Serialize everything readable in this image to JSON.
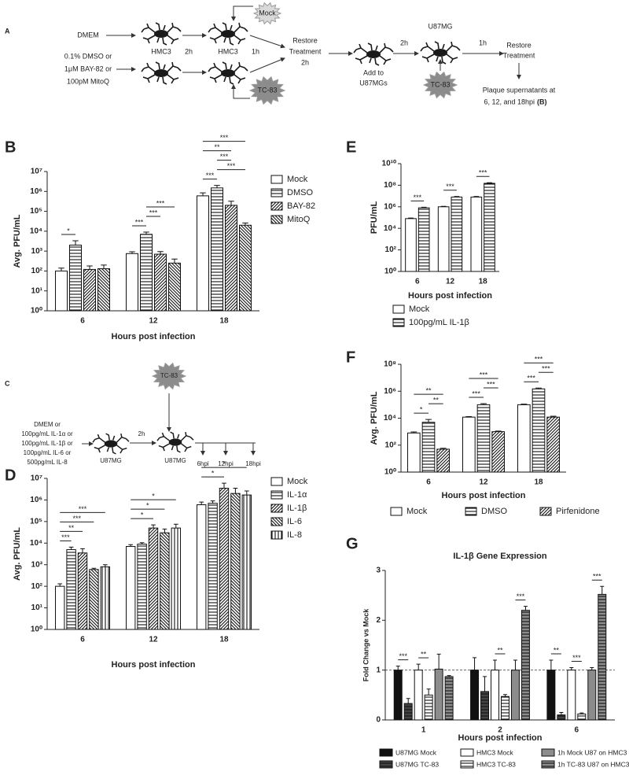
{
  "diagram_a": {
    "panel": "A",
    "labels": [
      "DMEM",
      "0.1% DMSO or",
      "1μM BAY-82 or",
      "100pM MitoQ",
      "HMC3",
      "2h",
      "HMC3",
      "Mock",
      "1h",
      "TC-83",
      "Restore",
      "Treatment",
      "2h",
      "Add to",
      "U87MGs",
      "2h",
      "U87MG",
      "TC-83",
      "1h",
      "Restore",
      "Treatment",
      "Plaque supernatants at",
      "6, 12, and 18hpi",
      "(B)"
    ]
  },
  "diagram_c": {
    "panel": "C",
    "labels": [
      "DMEM or",
      "100pg/mL IL-1α or",
      "100pg/mL IL-1β or",
      "100pg/mL IL-6 or",
      "500pg/mL IL-8",
      "U87MG",
      "2h",
      "TC-83",
      "U87MG",
      "6hpi",
      "12hpi",
      "18hpi"
    ]
  },
  "chart_data": [
    {
      "panel": "B",
      "type": "bar",
      "log": true,
      "ylabel": "Avg. PFU/mL",
      "xlabel": "Hours post infection",
      "legend": "right",
      "categories": [
        "6",
        "12",
        "18"
      ],
      "ylim": [
        1,
        10000000
      ],
      "yticks": [
        {
          "value": 1,
          "label": "10⁰"
        },
        {
          "value": 10,
          "label": "10¹"
        },
        {
          "value": 100,
          "label": "10²"
        },
        {
          "value": 1000,
          "label": "10³"
        },
        {
          "value": 10000,
          "label": "10⁴"
        },
        {
          "value": 100000,
          "label": "10⁵"
        },
        {
          "value": 1000000,
          "label": "10⁶"
        },
        {
          "value": 10000000,
          "label": "10⁷"
        }
      ],
      "series": [
        {
          "name": "Mock",
          "color": "#ffffff",
          "pattern": "none",
          "values": [
            100,
            750,
            600000
          ],
          "errors": [
            40,
            180,
            250000
          ]
        },
        {
          "name": "DMSO",
          "color": "#ffffff",
          "pattern": "horizontal",
          "values": [
            2000,
            7000,
            1500000
          ],
          "errors": [
            1300,
            2000,
            500000
          ]
        },
        {
          "name": "BAY-82",
          "color": "#ffffff",
          "pattern": "diagonal-up",
          "values": [
            120,
            700,
            200000
          ],
          "errors": [
            60,
            250,
            120000
          ]
        },
        {
          "name": "MitoQ",
          "color": "#ffffff",
          "pattern": "diagonal-down",
          "values": [
            130,
            250,
            20000
          ],
          "errors": [
            70,
            150,
            6000
          ]
        }
      ],
      "annotations": [
        {
          "label": "*",
          "category": "6",
          "between": [
            "Mock",
            "DMSO"
          ]
        },
        {
          "label": "***",
          "category": "12",
          "between": [
            "Mock",
            "DMSO"
          ]
        },
        {
          "label": "***",
          "category": "12",
          "between": [
            "DMSO",
            "BAY-82"
          ]
        },
        {
          "label": "***",
          "category": "12",
          "between": [
            "DMSO",
            "MitoQ"
          ]
        },
        {
          "label": "***",
          "category": "18",
          "between": [
            "Mock",
            "DMSO"
          ]
        },
        {
          "label": "***",
          "category": "18",
          "between": [
            "DMSO",
            "MitoQ"
          ]
        },
        {
          "label": "***",
          "category": "18",
          "between": [
            "DMSO",
            "BAY-82"
          ]
        },
        {
          "label": "**",
          "category": "18",
          "between": [
            "Mock",
            "BAY-82"
          ]
        },
        {
          "label": "***",
          "category": "18",
          "between": [
            "Mock",
            "MitoQ"
          ]
        }
      ]
    },
    {
      "panel": "E",
      "type": "bar",
      "log": true,
      "ylabel": "PFU/mL",
      "xlabel": "Hours post infection",
      "legend": "below",
      "categories": [
        "6",
        "12",
        "18"
      ],
      "ylim": [
        1,
        10000000000
      ],
      "yticks": [
        {
          "value": 1,
          "label": "10⁰"
        },
        {
          "value": 100,
          "label": "10²"
        },
        {
          "value": 10000,
          "label": "10⁴"
        },
        {
          "value": 1000000,
          "label": "10⁶"
        },
        {
          "value": 100000000,
          "label": "10⁸"
        },
        {
          "value": 10000000000,
          "label": "10¹⁰"
        }
      ],
      "series": [
        {
          "name": "Mock",
          "color": "#ffffff",
          "pattern": "none",
          "values": [
            80000,
            1000000,
            8000000
          ],
          "errors": [
            10000,
            100000,
            1000000
          ]
        },
        {
          "name": "100pg/mL IL-1β",
          "color": "#ffffff",
          "pattern": "horizontal",
          "values": [
            800000,
            8000000,
            150000000
          ],
          "errors": [
            100000,
            1000000,
            20000000
          ]
        }
      ],
      "annotations": [
        {
          "label": "***",
          "category": "6",
          "between": [
            "Mock",
            "100pg/mL IL-1β"
          ]
        },
        {
          "label": "***",
          "category": "12",
          "between": [
            "Mock",
            "100pg/mL IL-1β"
          ]
        },
        {
          "label": "***",
          "category": "18",
          "between": [
            "Mock",
            "100pg/mL IL-1β"
          ]
        }
      ]
    },
    {
      "panel": "F",
      "type": "bar",
      "log": true,
      "ylabel": "Avg. PFU/mL",
      "xlabel": "Hours post infection",
      "legend": "bottom",
      "categories": [
        "6",
        "12",
        "18"
      ],
      "ylim": [
        1,
        100000000
      ],
      "yticks": [
        {
          "value": 1,
          "label": "10⁰"
        },
        {
          "value": 100,
          "label": "10²"
        },
        {
          "value": 10000,
          "label": "10⁴"
        },
        {
          "value": 1000000,
          "label": "10⁶"
        },
        {
          "value": 100000000,
          "label": "10⁸"
        }
      ],
      "series": [
        {
          "name": "Mock",
          "color": "#ffffff",
          "pattern": "none",
          "values": [
            800,
            12000,
            100000
          ],
          "errors": [
            150,
            1000,
            10000
          ]
        },
        {
          "name": "DMSO",
          "color": "#ffffff",
          "pattern": "horizontal",
          "values": [
            5000,
            100000,
            1500000
          ],
          "errors": [
            3000,
            20000,
            200000
          ]
        },
        {
          "name": "Pirfenidone",
          "color": "#ffffff",
          "pattern": "diagonal-up",
          "values": [
            50,
            1000,
            12000
          ],
          "errors": [
            8,
            100,
            2000
          ]
        }
      ],
      "annotations": [
        {
          "label": "*",
          "category": "6",
          "between": [
            "Mock",
            "DMSO"
          ]
        },
        {
          "label": "**",
          "category": "6",
          "between": [
            "DMSO",
            "Pirfenidone"
          ]
        },
        {
          "label": "**",
          "category": "6",
          "between": [
            "Mock",
            "Pirfenidone"
          ]
        },
        {
          "label": "***",
          "category": "12",
          "between": [
            "Mock",
            "DMSO"
          ]
        },
        {
          "label": "***",
          "category": "12",
          "between": [
            "DMSO",
            "Pirfenidone"
          ]
        },
        {
          "label": "***",
          "category": "12",
          "between": [
            "Mock",
            "Pirfenidone"
          ]
        },
        {
          "label": "***",
          "category": "18",
          "between": [
            "Mock",
            "DMSO"
          ]
        },
        {
          "label": "***",
          "category": "18",
          "between": [
            "DMSO",
            "Pirfenidone"
          ]
        },
        {
          "label": "***",
          "category": "18",
          "between": [
            "Mock",
            "Pirfenidone"
          ]
        }
      ]
    },
    {
      "panel": "D",
      "type": "bar",
      "log": true,
      "ylabel": "Avg. PFU/mL",
      "xlabel": "Hours post infection",
      "legend": "right",
      "categories": [
        "6",
        "12",
        "18"
      ],
      "ylim": [
        1,
        10000000
      ],
      "yticks": [
        {
          "value": 1,
          "label": "10⁰"
        },
        {
          "value": 10,
          "label": "10¹"
        },
        {
          "value": 100,
          "label": "10²"
        },
        {
          "value": 1000,
          "label": "10³"
        },
        {
          "value": 10000,
          "label": "10⁴"
        },
        {
          "value": 100000,
          "label": "10⁵"
        },
        {
          "value": 1000000,
          "label": "10⁶"
        },
        {
          "value": 10000000,
          "label": "10⁷"
        }
      ],
      "series": [
        {
          "name": "Mock",
          "color": "#ffffff",
          "pattern": "none",
          "values": [
            100,
            7000,
            600000
          ],
          "errors": [
            30,
            1500,
            200000
          ]
        },
        {
          "name": "IL-1α",
          "color": "#ffffff",
          "pattern": "horizontal",
          "values": [
            5000,
            9000,
            700000
          ],
          "errors": [
            1500,
            1500,
            200000
          ]
        },
        {
          "name": "IL-1β",
          "color": "#ffffff",
          "pattern": "diagonal-up",
          "values": [
            3500,
            50000,
            3500000
          ],
          "errors": [
            2000,
            20000,
            2500000
          ]
        },
        {
          "name": "IL-6",
          "color": "#ffffff",
          "pattern": "diagonal-down",
          "values": [
            600,
            30000,
            2000000
          ],
          "errors": [
            80,
            15000,
            1500000
          ]
        },
        {
          "name": "IL-8",
          "color": "#ffffff",
          "pattern": "vertical",
          "values": [
            800,
            50000,
            1700000
          ],
          "errors": [
            200,
            25000,
            900000
          ]
        }
      ],
      "annotations": [
        {
          "label": "***",
          "category": "6",
          "between": [
            "Mock",
            "IL-1α"
          ]
        },
        {
          "label": "**",
          "category": "6",
          "between": [
            "Mock",
            "IL-1β"
          ]
        },
        {
          "label": "***",
          "category": "6",
          "between": [
            "Mock",
            "IL-6"
          ]
        },
        {
          "label": "***",
          "category": "6",
          "between": [
            "Mock",
            "IL-8"
          ]
        },
        {
          "label": "*",
          "category": "12",
          "between": [
            "Mock",
            "IL-1β"
          ]
        },
        {
          "label": "*",
          "category": "12",
          "between": [
            "Mock",
            "IL-6"
          ]
        },
        {
          "label": "*",
          "category": "12",
          "between": [
            "Mock",
            "IL-8"
          ]
        },
        {
          "label": "*",
          "category": "18",
          "between": [
            "Mock",
            "IL-1β"
          ]
        },
        {
          "label": "*",
          "category": "18",
          "between": [
            "Mock",
            "IL-8"
          ]
        }
      ]
    },
    {
      "panel": "G",
      "type": "bar",
      "log": false,
      "title": "IL-1β Gene Expression",
      "ylabel": "Fold Change vs Mock",
      "xlabel": "Hours post infection",
      "legend": "bottom",
      "categories": [
        "1",
        "2",
        "6"
      ],
      "ylim": [
        0,
        3
      ],
      "yticks": [
        0,
        1,
        2,
        3
      ],
      "hline": 1,
      "series": [
        {
          "name": "U87MG Mock",
          "color": "#111111",
          "pattern": "none",
          "values": [
            1,
            1,
            1
          ],
          "errors": [
            0.08,
            0.25,
            0.2
          ]
        },
        {
          "name": "U87MG TC-83",
          "color": "#444444",
          "pattern": "horizontal",
          "values": [
            0.33,
            0.57,
            0.1
          ],
          "errors": [
            0.1,
            0.3,
            0.05
          ]
        },
        {
          "name": "HMC3 Mock",
          "color": "#ffffff",
          "pattern": "none",
          "values": [
            1,
            1,
            1
          ],
          "errors": [
            0.12,
            0.2,
            0.05
          ]
        },
        {
          "name": "HMC3 TC-83",
          "color": "#ffffff",
          "pattern": "horizontal",
          "values": [
            0.5,
            0.47,
            0.12
          ],
          "errors": [
            0.12,
            0.04,
            0.02
          ]
        },
        {
          "name": "1h Mock U87 on HMC3",
          "color": "#8c8c8c",
          "pattern": "none",
          "values": [
            1.02,
            1,
            1
          ],
          "errors": [
            0.3,
            0.2,
            0.05
          ]
        },
        {
          "name": "1h TC-83 U87 on HMC3",
          "color": "#8c8c8c",
          "pattern": "horizontal",
          "values": [
            0.87,
            2.2,
            2.52
          ],
          "errors": [
            0.02,
            0.08,
            0.16
          ]
        }
      ],
      "annotations": [
        {
          "label": "***",
          "category": "1",
          "between": [
            "U87MG Mock",
            "U87MG TC-83"
          ]
        },
        {
          "label": "**",
          "category": "1",
          "between": [
            "HMC3 Mock",
            "HMC3 TC-83"
          ]
        },
        {
          "label": "**",
          "category": "2",
          "between": [
            "HMC3 Mock",
            "HMC3 TC-83"
          ]
        },
        {
          "label": "***",
          "category": "2",
          "between": [
            "1h Mock U87 on HMC3",
            "1h TC-83 U87 on HMC3"
          ]
        },
        {
          "label": "**",
          "category": "6",
          "between": [
            "U87MG Mock",
            "U87MG TC-83"
          ]
        },
        {
          "label": "***",
          "category": "6",
          "between": [
            "HMC3 Mock",
            "HMC3 TC-83"
          ]
        },
        {
          "label": "***",
          "category": "6",
          "between": [
            "1h Mock U87 on HMC3",
            "1h TC-83 U87 on HMC3"
          ]
        }
      ]
    }
  ]
}
